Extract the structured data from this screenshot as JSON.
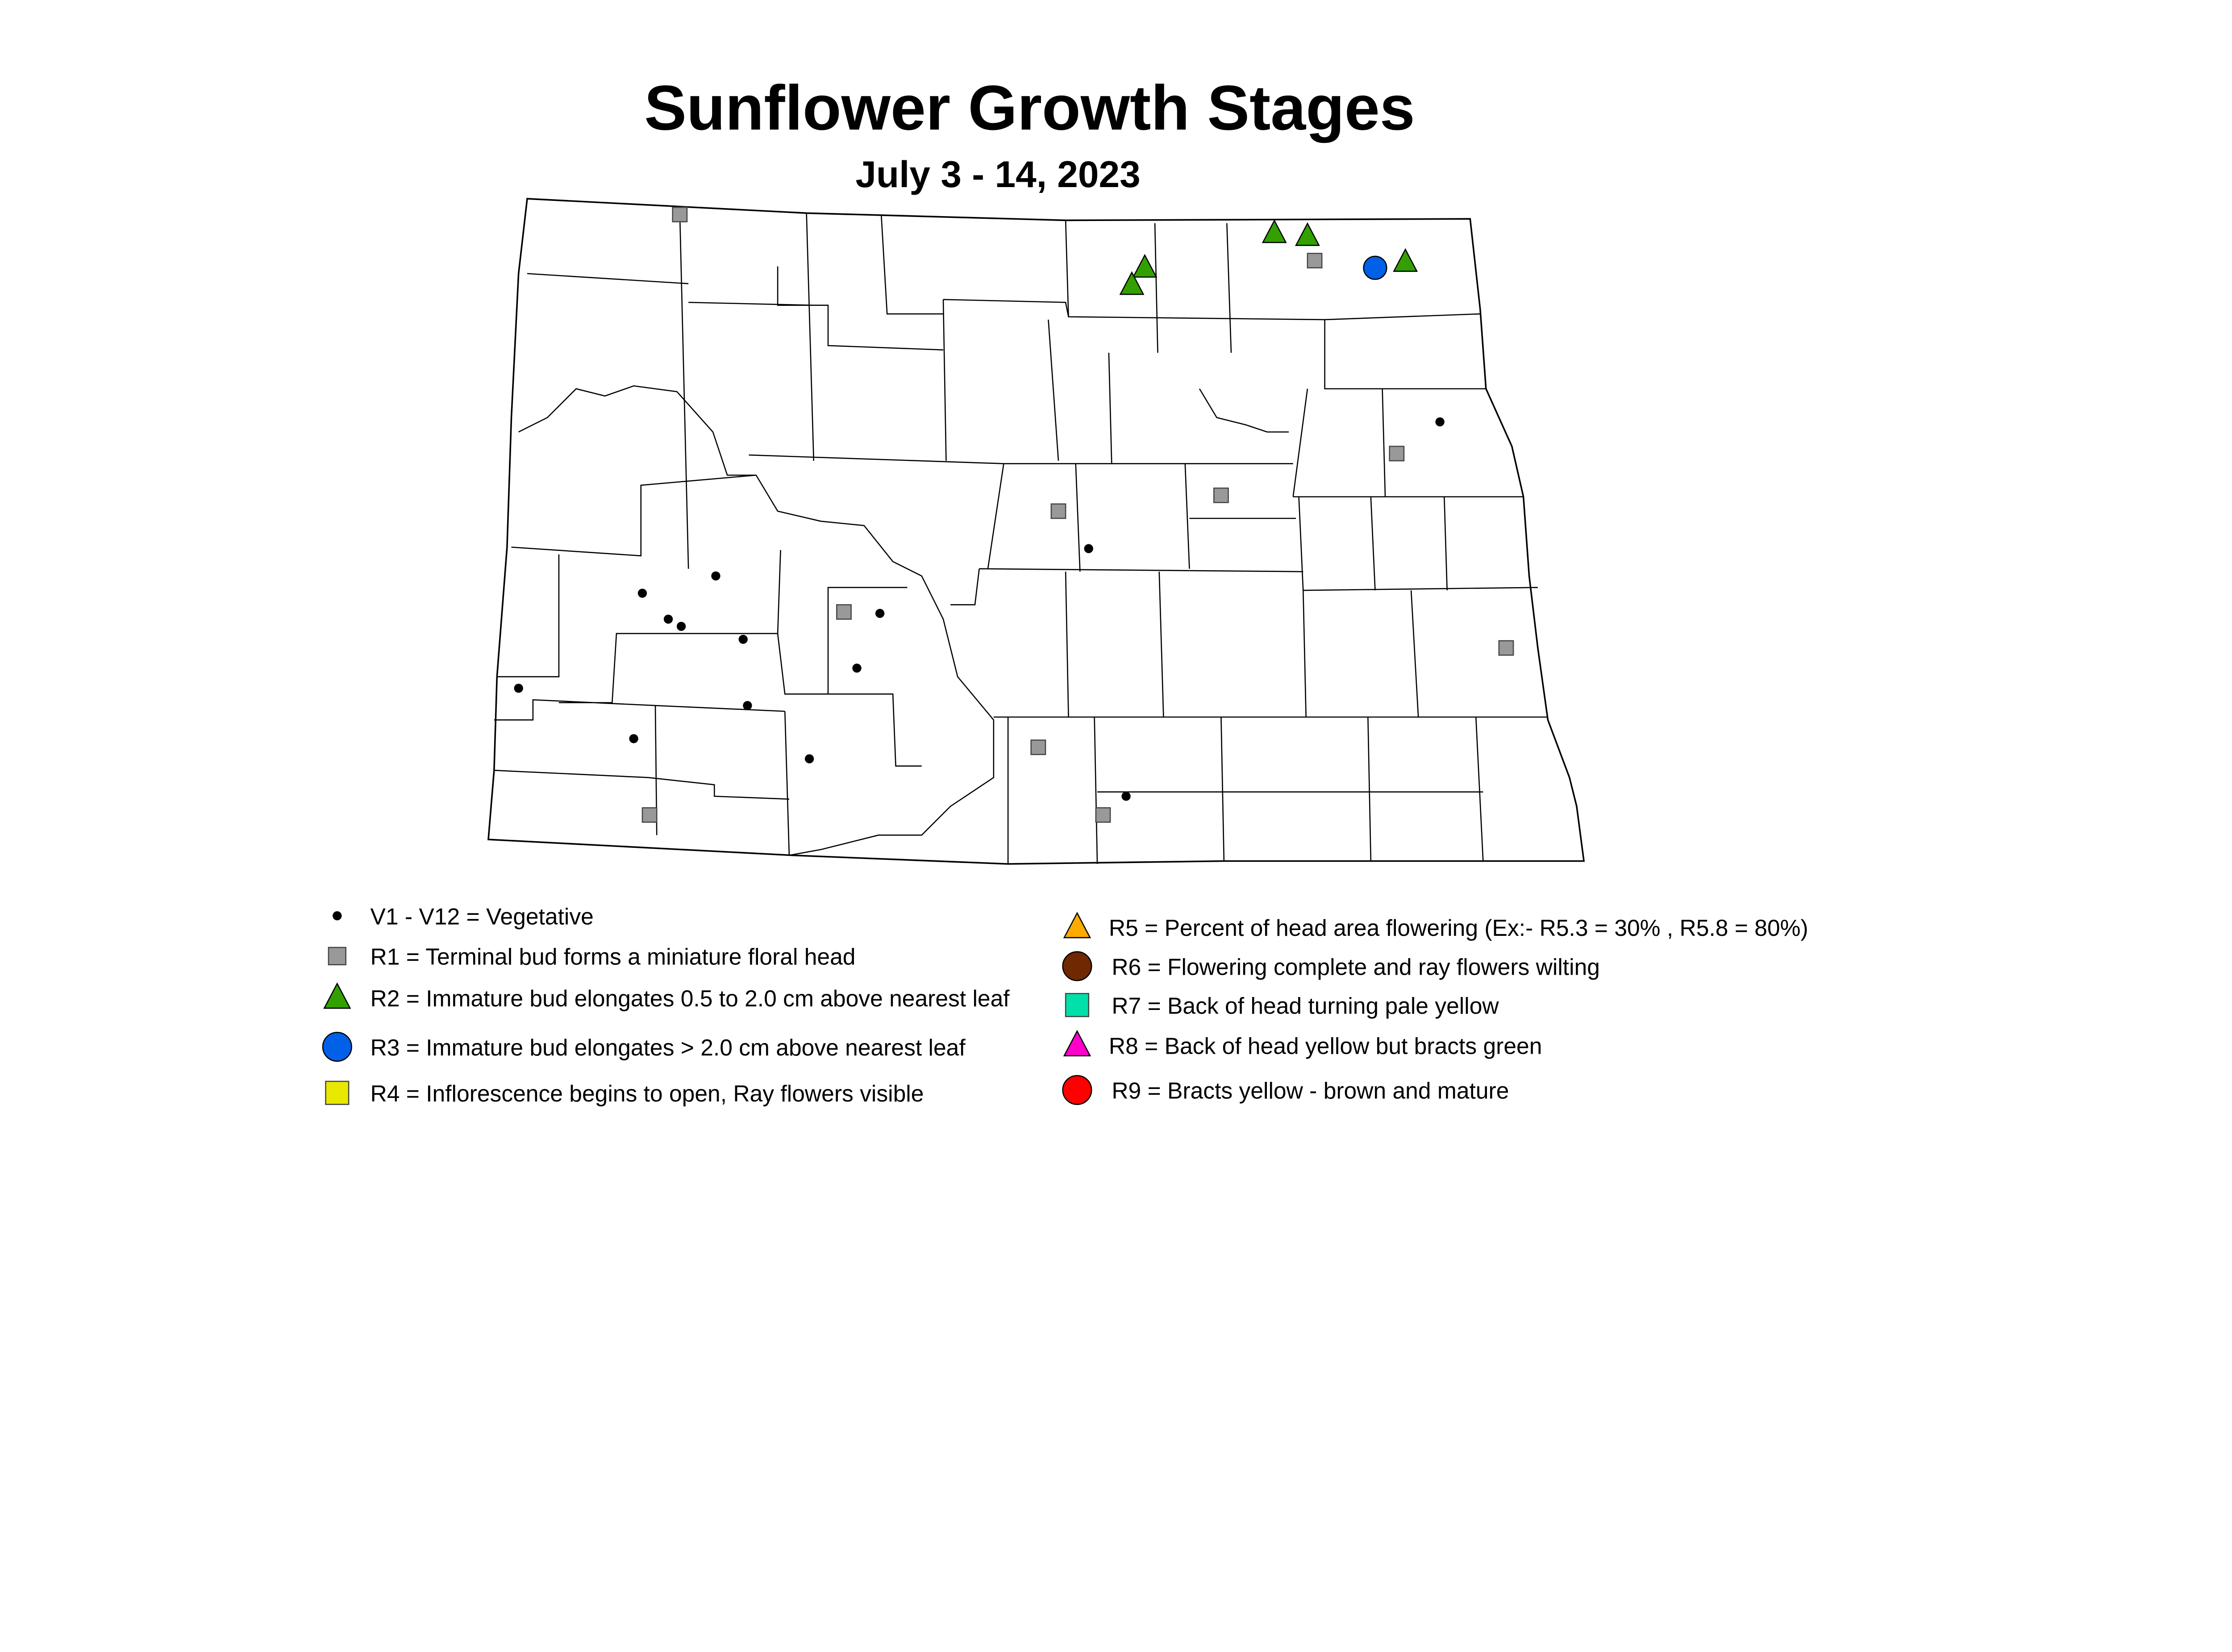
{
  "title": "Sunflower Growth Stages",
  "subtitle": "July 3 - 14, 2023",
  "colors": {
    "V": "#000000",
    "R1": "#999999",
    "R2": "#33a000",
    "R3": "#0060e8",
    "R4": "#e8e800",
    "R5": "#ffaa00",
    "R6": "#702800",
    "R7": "#00e0a8",
    "R8": "#ff00cc",
    "R9": "#ff0000"
  },
  "legend": [
    {
      "stage": "V",
      "shape": "dot",
      "label": "V1 - V12 = Vegetative"
    },
    {
      "stage": "R1",
      "shape": "square",
      "label": "R1 = Terminal bud forms a miniature floral head"
    },
    {
      "stage": "R2",
      "shape": "triangle",
      "label": "R2 = Immature bud elongates 0.5 to 2.0 cm above nearest leaf"
    },
    {
      "stage": "R3",
      "shape": "circle",
      "label": "R3 = Immature bud elongates > 2.0 cm above nearest leaf"
    },
    {
      "stage": "R4",
      "shape": "square",
      "label": "R4 = Inflorescence begins to open, Ray flowers visible"
    },
    {
      "stage": "R5",
      "shape": "triangle",
      "label": "R5 = Percent of head area flowering (Ex:- R5.3 = 30% , R5.8 = 80%)"
    },
    {
      "stage": "R6",
      "shape": "circle",
      "label": "R6 = Flowering complete and ray flowers wilting"
    },
    {
      "stage": "R7",
      "shape": "square",
      "label": "R7 = Back of head turning pale yellow"
    },
    {
      "stage": "R8",
      "shape": "triangle",
      "label": "R8 = Back of head yellow but bracts green"
    },
    {
      "stage": "R9",
      "shape": "circle",
      "label": "R9 = Bracts yellow - brown and mature"
    }
  ]
}
